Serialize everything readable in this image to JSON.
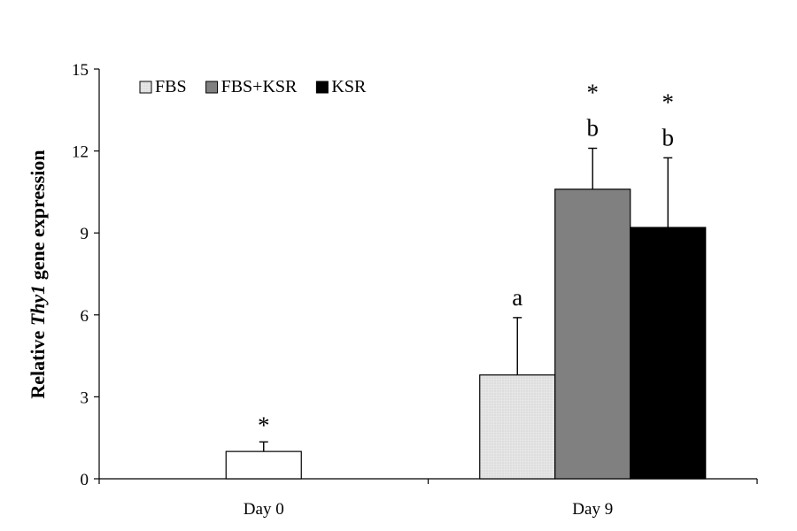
{
  "chart_data": {
    "type": "bar",
    "ylabel": {
      "prefix": "Relative ",
      "gene": "Thy1",
      "suffix": " gene expression"
    },
    "ylim": [
      0,
      15
    ],
    "yticks": [
      0,
      3,
      6,
      9,
      12,
      15
    ],
    "legend_position": "top-left",
    "categories": [
      "Day 0",
      "Day 9"
    ],
    "series": [
      {
        "key": "day0",
        "category": "Day 0",
        "color": "#ffffff",
        "pattern": "none",
        "bars": [
          {
            "value": 1.0,
            "error": 0.35,
            "annotations": [
              "*"
            ]
          }
        ]
      }
    ],
    "groups": [
      {
        "category": "Day 0",
        "bars": [
          {
            "series": "",
            "value": 1.0,
            "error": 0.35,
            "fill": "#ffffff",
            "annotations": [
              "*"
            ]
          }
        ]
      },
      {
        "category": "Day 9",
        "bars": [
          {
            "series": "FBS",
            "value": 3.8,
            "error": 2.1,
            "fill": "#e3e3e3",
            "annotations": [
              "a"
            ]
          },
          {
            "series": "FBS+KSR",
            "value": 10.6,
            "error": 1.5,
            "fill": "#808080",
            "annotations": [
              "b",
              "*"
            ]
          },
          {
            "series": "KSR",
            "value": 9.2,
            "error": 2.55,
            "fill": "#000000",
            "annotations": [
              "b",
              "*"
            ]
          }
        ]
      }
    ],
    "legend": [
      {
        "name": "FBS",
        "fill": "#e3e3e3"
      },
      {
        "name": "FBS+KSR",
        "fill": "#808080"
      },
      {
        "name": "KSR",
        "fill": "#000000"
      }
    ]
  }
}
